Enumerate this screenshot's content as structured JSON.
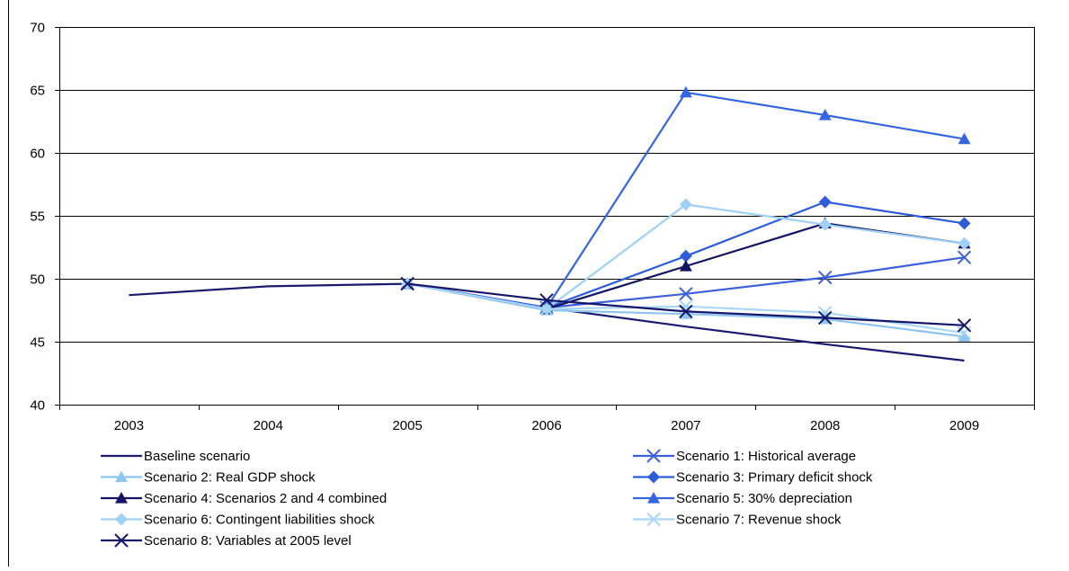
{
  "chart_data": {
    "type": "line",
    "categories": [
      "2003",
      "2004",
      "2005",
      "2006",
      "2007",
      "2008",
      "2009"
    ],
    "ylim": [
      40,
      70
    ],
    "yticks": [
      40,
      45,
      50,
      55,
      60,
      65,
      70
    ],
    "ytick_labels": [
      "40",
      "45",
      "50",
      "55",
      "60",
      "65",
      "70"
    ],
    "grid": "horizontal",
    "legend_placement": "bottom",
    "series": [
      {
        "name": "Baseline scenario",
        "color": "#1a1a6e",
        "marker": "none",
        "values": [
          48.7,
          49.4,
          49.6,
          47.7,
          46.2,
          44.8,
          43.5
        ]
      },
      {
        "name": "Scenario 1: Historical average",
        "color": "#3d5fd9",
        "marker": "x",
        "values": [
          null,
          null,
          49.6,
          47.7,
          48.8,
          50.1,
          51.7
        ]
      },
      {
        "name": "Scenario 2: Real GDP shock",
        "color": "#8ec5ef",
        "marker": "triangle",
        "values": [
          null,
          null,
          49.6,
          47.5,
          47.2,
          46.8,
          45.4
        ]
      },
      {
        "name": "Scenario 3: Primary deficit shock",
        "color": "#2e5bd6",
        "marker": "diamond",
        "values": [
          null,
          null,
          49.6,
          47.7,
          51.8,
          56.1,
          54.4
        ]
      },
      {
        "name": "Scenario 4: Scenarios 2 and 4 combined",
        "color": "#141460",
        "marker": "triangle",
        "values": [
          null,
          null,
          49.6,
          47.6,
          51.0,
          54.4,
          52.8
        ]
      },
      {
        "name": "Scenario 5: 30% depreciation",
        "color": "#3466e0",
        "marker": "triangle",
        "values": [
          null,
          null,
          49.6,
          47.7,
          64.8,
          63.0,
          61.1
        ]
      },
      {
        "name": "Scenario 6: Contingent liabilities shock",
        "color": "#9fd0f5",
        "marker": "diamond",
        "values": [
          null,
          null,
          49.6,
          47.6,
          55.9,
          54.3,
          52.8
        ]
      },
      {
        "name": "Scenario 7: Revenue shock",
        "color": "#a8d6f7",
        "marker": "x",
        "values": [
          null,
          null,
          49.6,
          47.6,
          47.8,
          47.3,
          45.7
        ]
      },
      {
        "name": "Scenario 8: Variables at 2005 level",
        "color": "#16166a",
        "marker": "x",
        "values": [
          null,
          null,
          49.6,
          48.3,
          47.4,
          46.9,
          46.3
        ]
      }
    ]
  }
}
